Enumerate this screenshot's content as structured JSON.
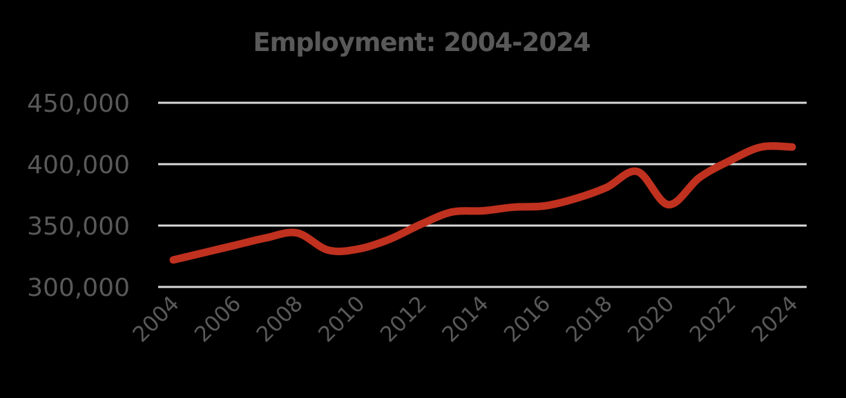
{
  "chart_data": {
    "type": "line",
    "title": "Employment: 2004-2024",
    "xlabel": "",
    "ylabel": "",
    "x_tick_labels": [
      "2004",
      "2006",
      "2008",
      "2010",
      "2012",
      "2014",
      "2016",
      "2018",
      "2020",
      "2022",
      "2024"
    ],
    "y_tick_labels": [
      "300,000",
      "350,000",
      "400,000",
      "450,000"
    ],
    "y_ticks": [
      300000,
      350000,
      400000,
      450000
    ],
    "ylim": [
      300000,
      450000
    ],
    "xlim": [
      2004,
      2024
    ],
    "grid": "horizontal",
    "legend": "none",
    "x": [
      2004,
      2005,
      2006,
      2007,
      2008,
      2009,
      2010,
      2011,
      2012,
      2013,
      2014,
      2015,
      2016,
      2017,
      2018,
      2019,
      2020,
      2021,
      2022,
      2023,
      2024
    ],
    "series": [
      {
        "name": "Employment",
        "color": "#C0311F",
        "smooth": true,
        "values": [
          322000,
          328000,
          334000,
          340000,
          344000,
          330000,
          331000,
          339000,
          351000,
          361000,
          362000,
          365000,
          366000,
          372000,
          381000,
          394000,
          367000,
          389000,
          403000,
          414000,
          414000
        ]
      }
    ]
  },
  "colors": {
    "background": "#000000",
    "text": "#595959",
    "gridline": "#D9D9D9",
    "line": "#C0311F"
  }
}
